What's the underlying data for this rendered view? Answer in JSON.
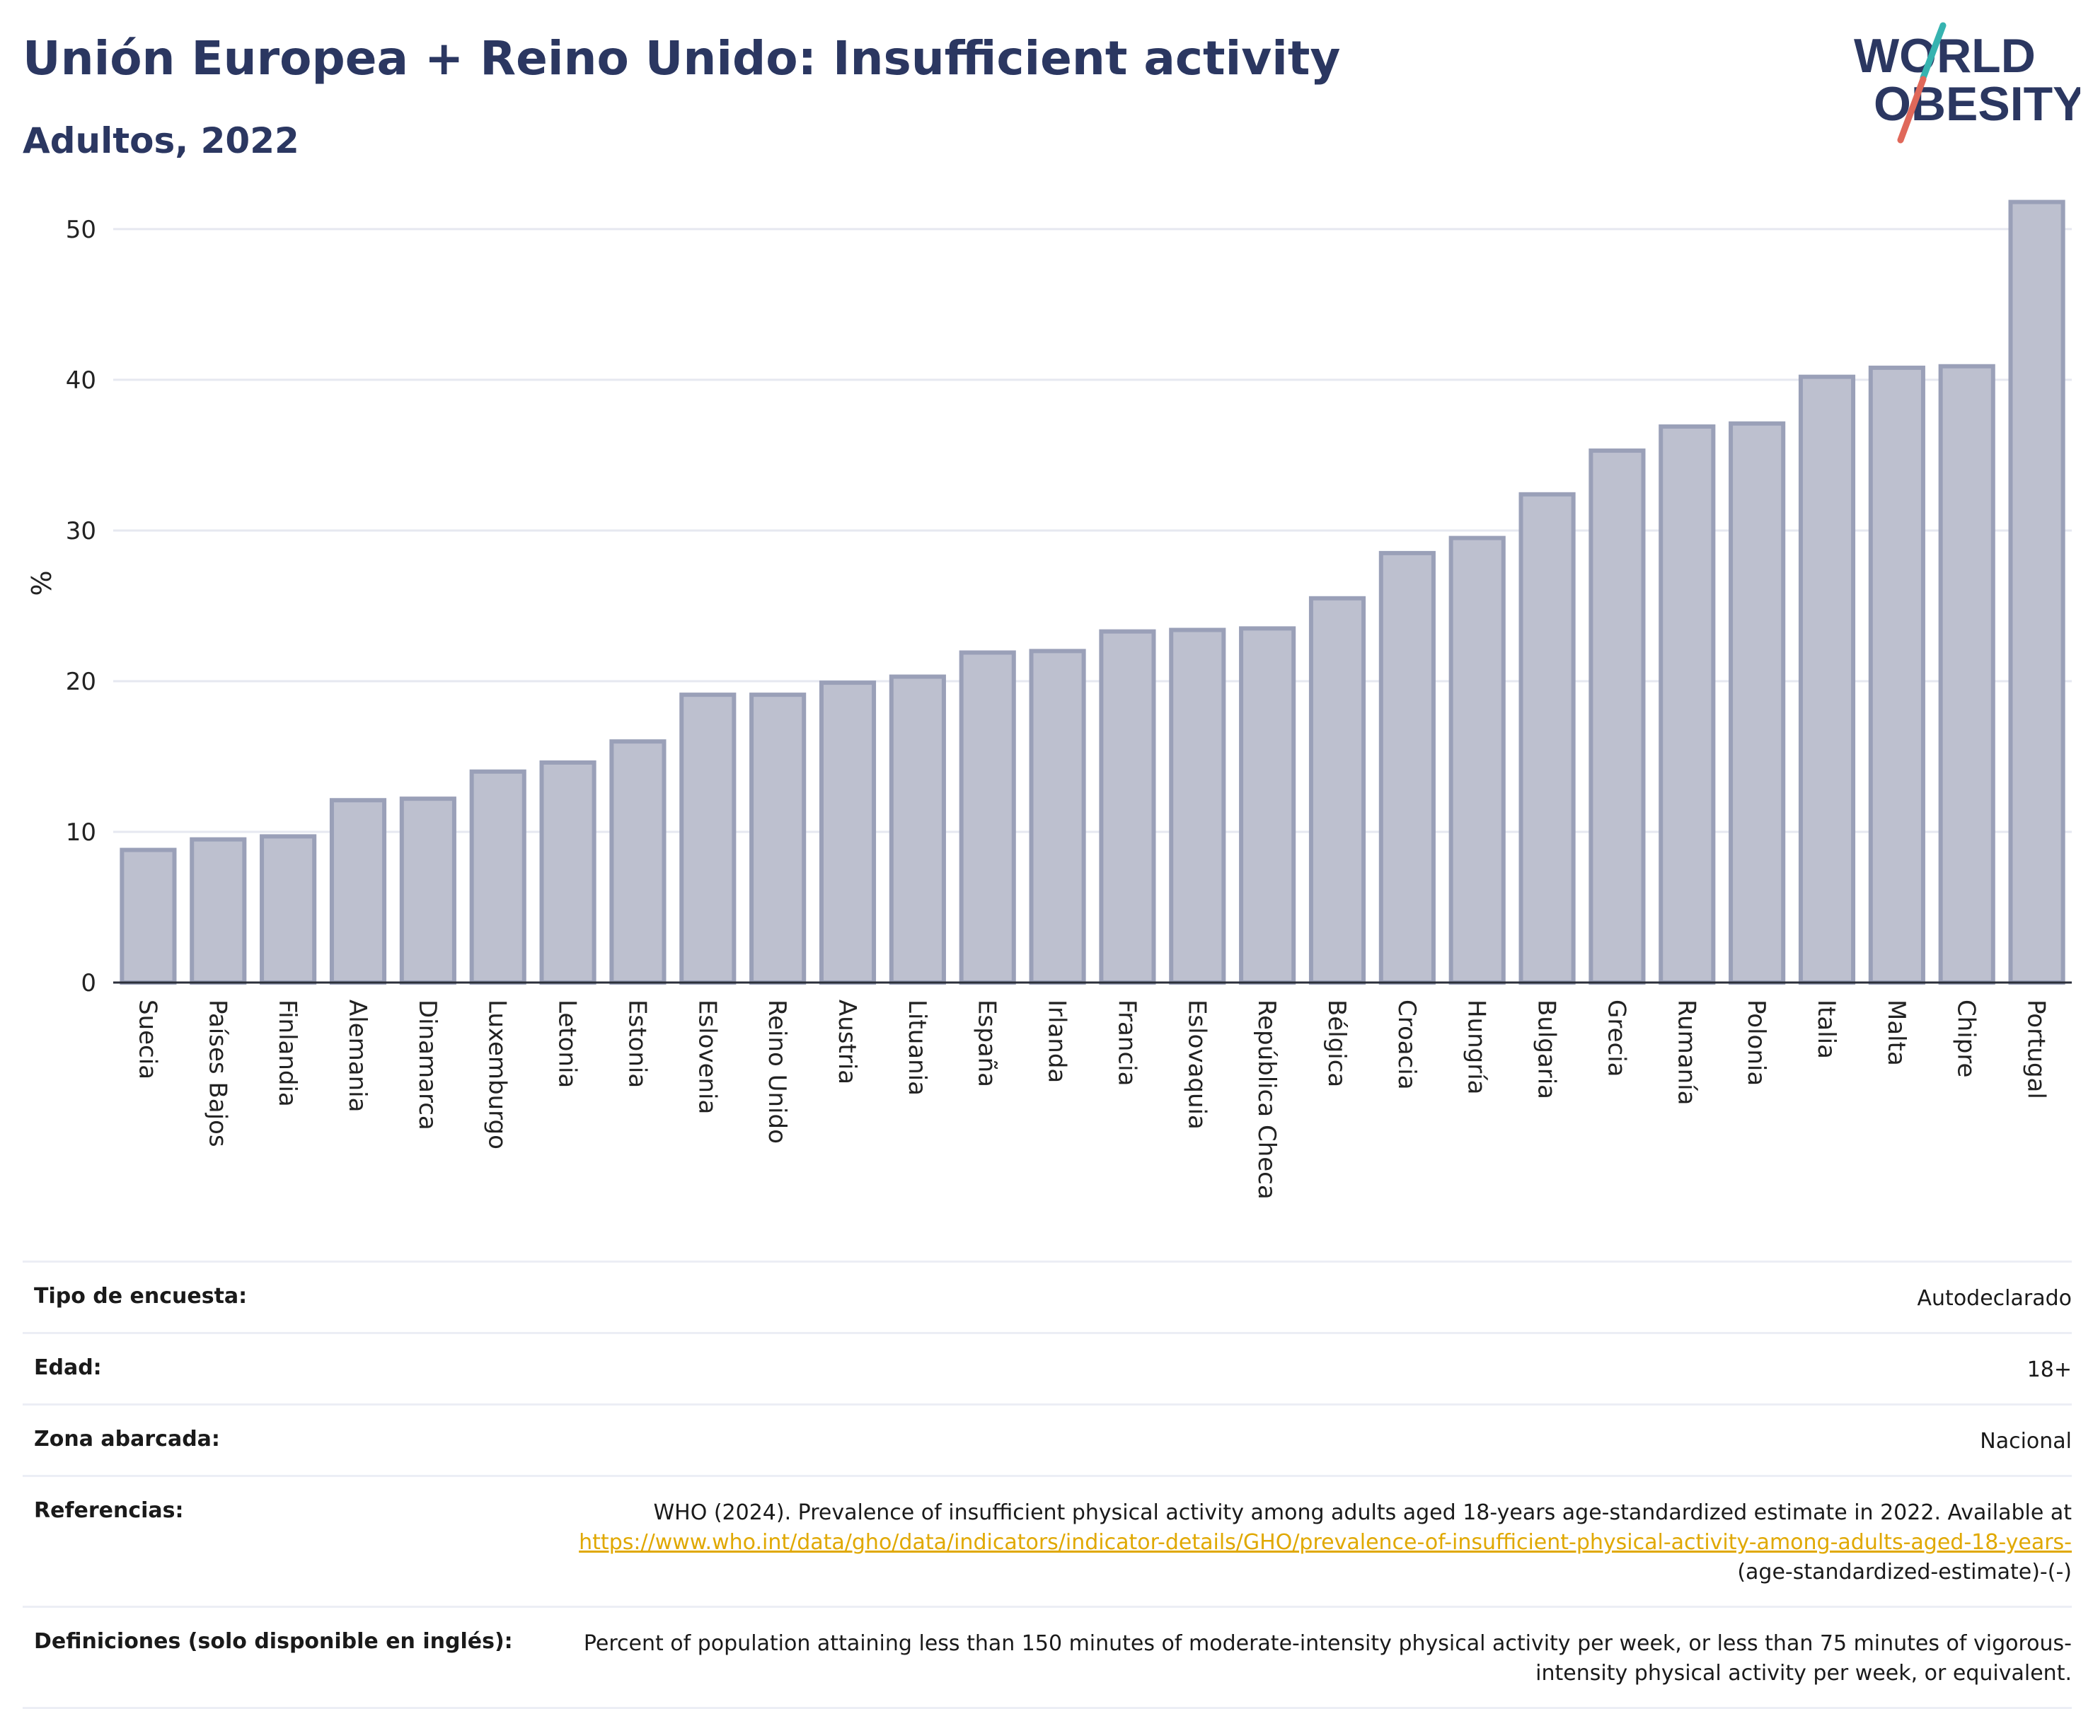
{
  "header": {
    "title": "Unión Europea + Reino Unido: Insufficient activity",
    "subtitle": "Adultos, 2022"
  },
  "logo": {
    "line1": "WORLD",
    "line2": "OBESITY",
    "accent_colors": [
      "#36b3b0",
      "#e0685a"
    ]
  },
  "chart_data": {
    "type": "bar",
    "ylabel": "%",
    "ylim": [
      0,
      53
    ],
    "yticks": [
      0,
      10,
      20,
      30,
      40,
      50
    ],
    "grid": true,
    "bar_fill": "#bdc0cf",
    "bar_stroke": "#9aa0b8",
    "categories": [
      "Suecia",
      "Países Bajos",
      "Finlandia",
      "Alemania",
      "Dinamarca",
      "Luxemburgo",
      "Letonia",
      "Estonia",
      "Eslovenia",
      "Reino Unido",
      "Austria",
      "Lituania",
      "España",
      "Irlanda",
      "Francia",
      "Eslovaquia",
      "República Checa",
      "Bélgica",
      "Croacia",
      "Hungría",
      "Bulgaria",
      "Grecia",
      "Rumanía",
      "Polonia",
      "Italia",
      "Malta",
      "Chipre",
      "Portugal"
    ],
    "values": [
      8.8,
      9.5,
      9.7,
      12.1,
      12.2,
      14.0,
      14.6,
      16.0,
      19.1,
      19.1,
      19.9,
      20.3,
      21.9,
      22.0,
      23.3,
      23.4,
      23.5,
      25.5,
      28.5,
      29.5,
      32.4,
      35.3,
      36.9,
      37.1,
      40.2,
      40.8,
      40.9,
      51.8
    ]
  },
  "details": {
    "survey_type": {
      "label": "Tipo de encuesta:",
      "value": "Autodeclarado"
    },
    "age": {
      "label": "Edad:",
      "value": "18+"
    },
    "area": {
      "label": "Zona abarcada:",
      "value": "Nacional"
    },
    "references": {
      "label": "Referencias:",
      "text": "WHO (2024). Prevalence of insufficient physical activity among adults aged 18-years age-standardized estimate in 2022. Available at",
      "link": "https://www.who.int/data/gho/data/indicators/indicator-details/GHO/prevalence-of-insufficient-physical-activity-among-adults-aged-18-years-",
      "suffix": "(age-standardized-estimate)-(-)"
    },
    "definitions": {
      "label": "Definiciones (solo disponible en inglés):",
      "value": "Percent of population attaining less than 150 minutes of moderate-intensity physical activity per week, or less than 75 minutes of vigorous-intensity physical activity per week, or equivalent."
    }
  }
}
